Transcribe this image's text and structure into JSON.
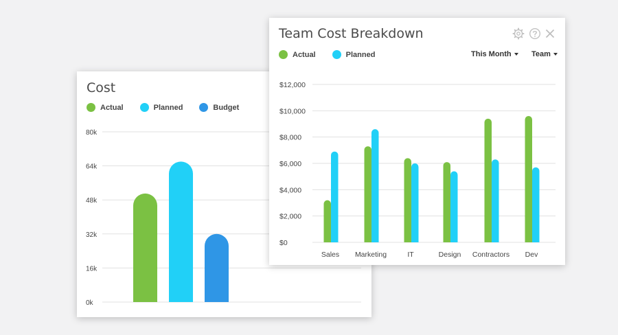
{
  "cost_card": {
    "title": "Cost",
    "legend": [
      {
        "label": "Actual",
        "color": "#7bc143"
      },
      {
        "label": "Planned",
        "color": "#21d0f7"
      },
      {
        "label": "Budget",
        "color": "#2f96e6"
      }
    ]
  },
  "team_card": {
    "title": "Team Cost Breakdown",
    "legend": [
      {
        "label": "Actual",
        "color": "#7bc143"
      },
      {
        "label": "Planned",
        "color": "#21d0f7"
      }
    ],
    "period_dropdown": "This Month",
    "group_dropdown": "Team",
    "icons": [
      "gear-icon",
      "help-icon",
      "close-icon"
    ]
  },
  "chart_data": [
    {
      "type": "bar",
      "title": "Cost",
      "categories": [
        "Actual",
        "Planned",
        "Budget"
      ],
      "values": [
        51000,
        66000,
        32000
      ],
      "colors": [
        "#7bc143",
        "#21d0f7",
        "#2f96e6"
      ],
      "ylim": [
        0,
        80000
      ],
      "yticks": [
        0,
        16000,
        32000,
        48000,
        64000,
        80000
      ],
      "ytick_labels": [
        "0k",
        "16k",
        "32k",
        "48k",
        "64k",
        "80k"
      ],
      "grid": true,
      "legend_position": "top-left"
    },
    {
      "type": "bar",
      "title": "Team Cost Breakdown",
      "categories": [
        "Sales",
        "Marketing",
        "IT",
        "Design",
        "Contractors",
        "Dev"
      ],
      "series": [
        {
          "name": "Actual",
          "color": "#7bc143",
          "values": [
            3200,
            7300,
            6400,
            6100,
            9400,
            9600
          ]
        },
        {
          "name": "Planned",
          "color": "#21d0f7",
          "values": [
            6900,
            8600,
            6000,
            5400,
            6300,
            5700
          ]
        }
      ],
      "ylim": [
        0,
        12000
      ],
      "yticks": [
        0,
        2000,
        4000,
        6000,
        8000,
        10000,
        12000
      ],
      "ytick_labels": [
        "$0",
        "$2,000",
        "$4,000",
        "$6,000",
        "$8,000",
        "$10,000",
        "$12,000"
      ],
      "grid": true,
      "legend_position": "top-left"
    }
  ]
}
